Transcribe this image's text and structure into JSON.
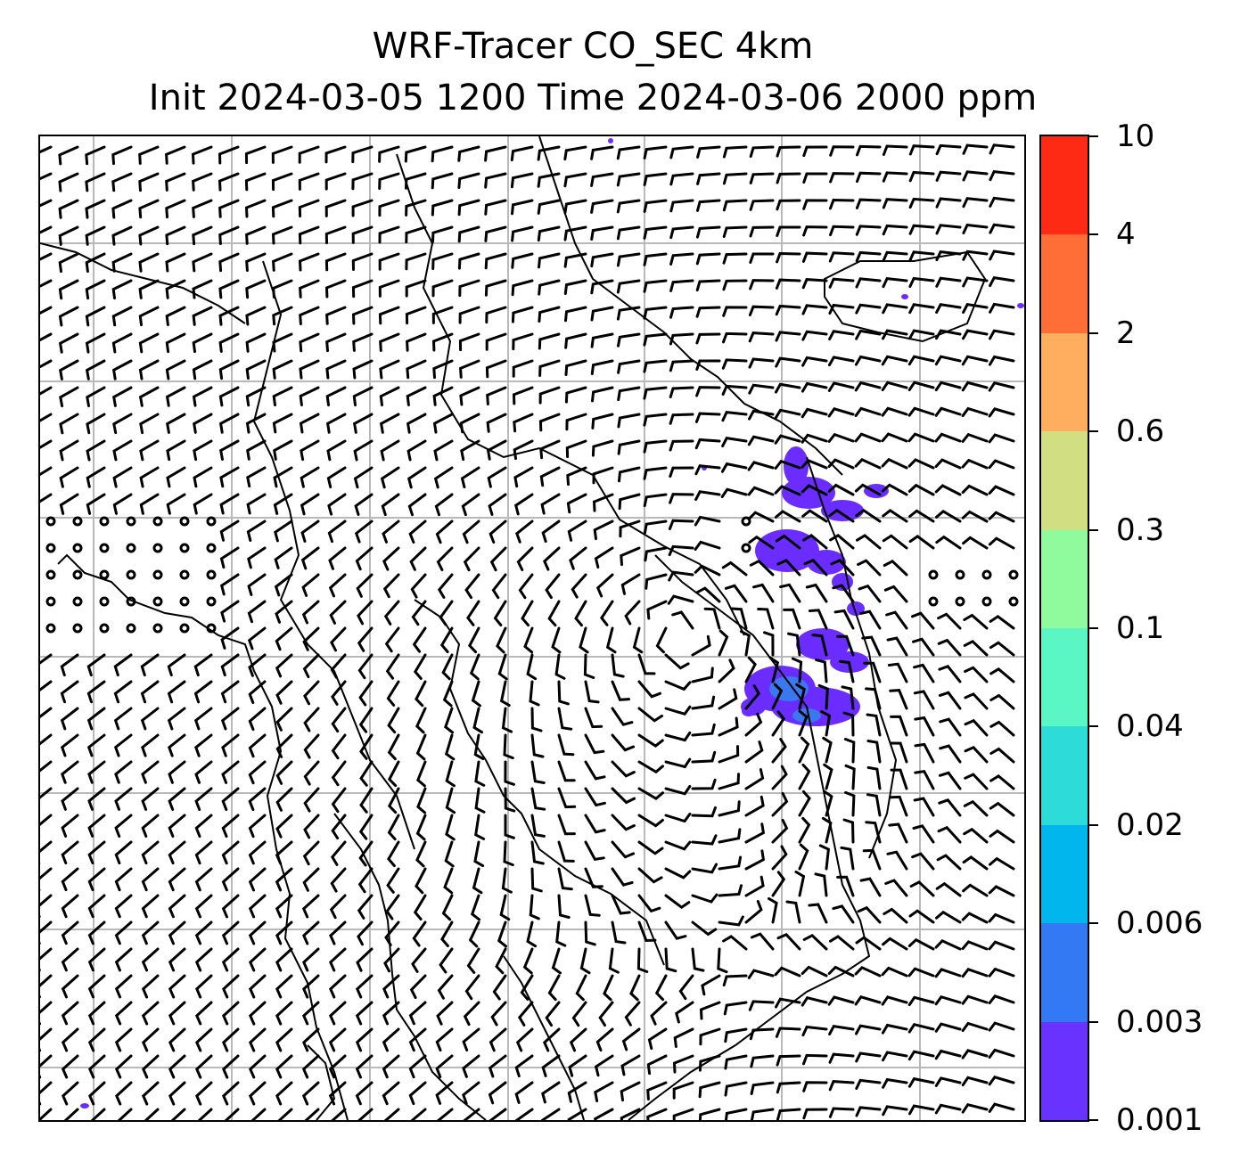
{
  "title": {
    "line1": "WRF-Tracer CO_SEC 4km",
    "line2": "Init 2024-03-05 1200 Time 2024-03-06 2000 ppm"
  },
  "map": {
    "field": "CO_SEC tracer concentration (ppm)",
    "overlay": "wind barbs",
    "grid": true,
    "gridlines_x": 7,
    "gridlines_y": 7,
    "plume_color": "#6a2cff",
    "plume_core_color": "#3a78f0"
  },
  "colorbar": {
    "labels": [
      "10",
      "4",
      "2",
      "0.6",
      "0.3",
      "0.1",
      "0.04",
      "0.02",
      "0.006",
      "0.003",
      "0.001"
    ],
    "colors": [
      "#ff2a14",
      "#ff6e36",
      "#ffad5f",
      "#d2de82",
      "#8ffb9c",
      "#5af7c4",
      "#2ddcd8",
      "#00b6ec",
      "#3479f4",
      "#6a32ff"
    ]
  }
}
